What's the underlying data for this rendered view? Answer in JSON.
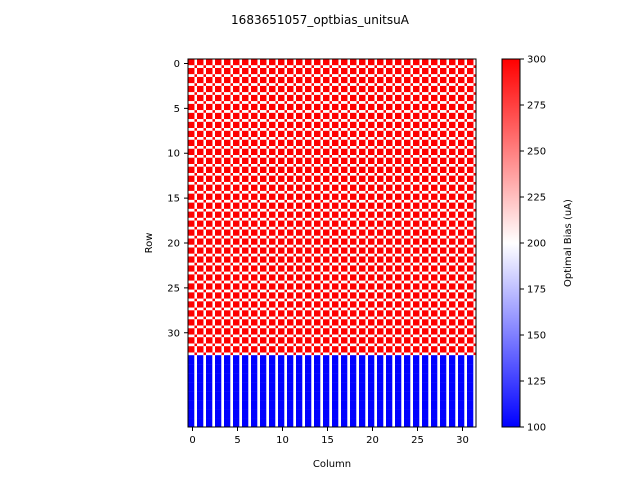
{
  "chart_data": {
    "type": "heatmap",
    "title": "1683651057_optbias_unitsuA",
    "xlabel": "Column",
    "ylabel": "Row",
    "colorbar_label": "Optimal Bias (uA)",
    "colormap": {
      "low": "#0000ff",
      "mid": "#ffffff",
      "high": "#ff0000"
    },
    "vmin": 100,
    "vmax": 300,
    "n_columns": 32,
    "n_rows": 41,
    "cell_pattern": {
      "rows_0_to_32": {
        "left_subcolumn": 300,
        "right_subcolumn": 300,
        "top_subrow": 300,
        "bottom_subrow": 300,
        "corner": 200
      },
      "rows_33_to_40": {
        "left_subcolumn": 100,
        "right_subcolumn": 200
      }
    },
    "xticks": [
      "0",
      "5",
      "10",
      "15",
      "20",
      "25",
      "30"
    ],
    "xtick_values": [
      0,
      5,
      10,
      15,
      20,
      25,
      30
    ],
    "yticks": [
      "0",
      "5",
      "10",
      "15",
      "20",
      "25",
      "30"
    ],
    "ytick_values": [
      0,
      5,
      10,
      15,
      20,
      25,
      30
    ],
    "colorbar_ticks": [
      "100",
      "125",
      "150",
      "175",
      "200",
      "225",
      "250",
      "275",
      "300"
    ],
    "colorbar_tick_values": [
      100,
      125,
      150,
      175,
      200,
      225,
      250,
      275,
      300
    ]
  }
}
